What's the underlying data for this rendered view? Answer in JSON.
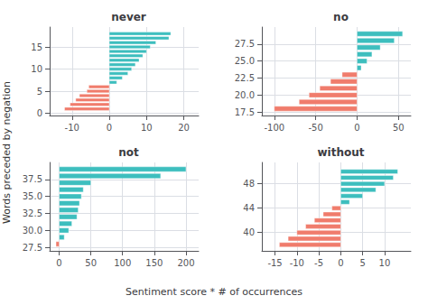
{
  "chart_data": {
    "type": "bar",
    "orientation": "horizontal",
    "grid": true,
    "xlabel": "Sentiment score * # of occurrences",
    "ylabel": "Words preceded by negation",
    "facets": [
      {
        "title": "never",
        "y": [
          1,
          2,
          3,
          4,
          5,
          6,
          7,
          8,
          9,
          10,
          11,
          12,
          13,
          14,
          15,
          16,
          17,
          18
        ],
        "values": [
          -12.0,
          -10.5,
          -9.0,
          -8.0,
          -6.0,
          -5.5,
          2.0,
          3.5,
          5.0,
          6.0,
          7.0,
          8.0,
          9.0,
          10.0,
          11.0,
          12.5,
          16.0,
          16.5
        ],
        "colors": [
          "#f07c6c",
          "#f07c6c",
          "#f07c6c",
          "#f07c6c",
          "#f07c6c",
          "#f07c6c",
          "#3dbebe",
          "#3dbebe",
          "#3dbebe",
          "#3dbebe",
          "#3dbebe",
          "#3dbebe",
          "#3dbebe",
          "#3dbebe",
          "#3dbebe",
          "#3dbebe",
          "#3dbebe",
          "#3dbebe"
        ],
        "xlim": [
          -16,
          24
        ],
        "xticks": [
          -10,
          0,
          10,
          20
        ],
        "ylim": [
          -0.5,
          19.5
        ],
        "yticks": [
          0,
          5,
          10,
          15
        ]
      },
      {
        "title": "no",
        "y": [
          18,
          19,
          20,
          21,
          22,
          23,
          24,
          25,
          26,
          27,
          28,
          29
        ],
        "values": [
          -100,
          -70,
          -58,
          -45,
          -32,
          -18,
          5,
          12,
          18,
          28,
          45,
          55
        ],
        "colors": [
          "#f07c6c",
          "#f07c6c",
          "#f07c6c",
          "#f07c6c",
          "#f07c6c",
          "#f07c6c",
          "#3dbebe",
          "#3dbebe",
          "#3dbebe",
          "#3dbebe",
          "#3dbebe",
          "#3dbebe"
        ],
        "xlim": [
          -115,
          65
        ],
        "xticks": [
          -100,
          -50,
          0,
          50
        ],
        "ylim": [
          17,
          30
        ],
        "yticks": [
          17.5,
          {
            "value": 20,
            "label": "20.0"
          },
          22.5,
          {
            "value": 25,
            "label": "25.0"
          },
          27.5
        ]
      },
      {
        "title": "not",
        "y": [
          28,
          29,
          30,
          31,
          32,
          33,
          34,
          35,
          36,
          37,
          38,
          39
        ],
        "values": [
          -5,
          8,
          15,
          20,
          28,
          30,
          32,
          35,
          38,
          50,
          160,
          200
        ],
        "colors": [
          "#f07c6c",
          "#3dbebe",
          "#3dbebe",
          "#3dbebe",
          "#3dbebe",
          "#3dbebe",
          "#3dbebe",
          "#3dbebe",
          "#3dbebe",
          "#3dbebe",
          "#3dbebe",
          "#3dbebe"
        ],
        "xlim": [
          -15,
          220
        ],
        "xticks": [
          0,
          50,
          100,
          150,
          200
        ],
        "ylim": [
          27,
          40
        ],
        "yticks": [
          27.5,
          {
            "value": 30,
            "label": "30.0"
          },
          32.5,
          {
            "value": 35,
            "label": "35.0"
          },
          37.5
        ]
      },
      {
        "title": "without",
        "y": [
          38,
          39,
          40,
          41,
          42,
          43,
          44,
          45,
          46,
          47,
          48,
          49,
          50
        ],
        "values": [
          -14,
          -12,
          -10,
          -8,
          -6,
          -4,
          -2,
          2,
          5,
          8,
          10,
          12,
          13
        ],
        "colors": [
          "#f07c6c",
          "#f07c6c",
          "#f07c6c",
          "#f07c6c",
          "#f07c6c",
          "#f07c6c",
          "#f07c6c",
          "#3dbebe",
          "#3dbebe",
          "#3dbebe",
          "#3dbebe",
          "#3dbebe",
          "#3dbebe"
        ],
        "xlim": [
          -18,
          16
        ],
        "xticks": [
          -15,
          -10,
          -5,
          0,
          5,
          10
        ],
        "ylim": [
          37,
          51.5
        ],
        "yticks": [
          40,
          44,
          48
        ]
      }
    ]
  }
}
